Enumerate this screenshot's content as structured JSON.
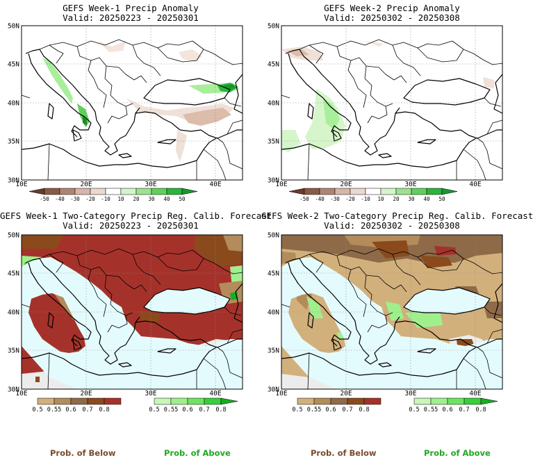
{
  "panels": [
    {
      "title": "GEFS Week-1 Precip Anomaly",
      "valid": "Valid: 20250223 - 20250301"
    },
    {
      "title": "GEFS Week-2 Precip Anomaly",
      "valid": "Valid: 20250302 - 20250308"
    },
    {
      "title": "GEFS Week-1 Two-Category Precip Reg. Calib. Forecast",
      "valid": "Valid: 20250223 - 20250301"
    },
    {
      "title": "GEFS Week-2 Two-Category Precip Reg. Calib. Forecast",
      "valid": "Valid: 20250302 - 20250308"
    }
  ],
  "lat_labels": [
    "50N",
    "45N",
    "40N",
    "35N",
    "30N"
  ],
  "lon_labels": [
    "10E",
    "20E",
    "30E",
    "40E"
  ],
  "anomaly_colorbar": {
    "labels": [
      "-50",
      "-40",
      "-30",
      "-20",
      "-10",
      "10",
      "20",
      "30",
      "40",
      "50"
    ],
    "colors": [
      "#6b3b2a",
      "#8c5a44",
      "#b08473",
      "#d7b6a8",
      "#ecd8cf",
      "#ffffff",
      "#d3f5c9",
      "#9be38f",
      "#5fd15a",
      "#2bb53c",
      "#149a2b"
    ]
  },
  "below_colorbar": {
    "labels": [
      "0.5",
      "0.55",
      "0.6",
      "0.7",
      "0.8"
    ],
    "colors": [
      "#d2b07c",
      "#b48c5c",
      "#8f6a48",
      "#8b4a1c",
      "#a5322a"
    ]
  },
  "above_colorbar": {
    "labels": [
      "0.5",
      "0.55",
      "0.6",
      "0.7",
      "0.8"
    ],
    "colors": [
      "#c8f7b8",
      "#9ff08c",
      "#6ee362",
      "#38cf3a",
      "#14ae20"
    ]
  },
  "prob_below_label": "Prob. of Below",
  "prob_above_label": "Prob. of Above",
  "colors": {
    "prob_below_text": "#7a4a2b",
    "prob_above_text": "#1fa81f",
    "sea": "#e4fbfd",
    "no_data": "#ececec"
  }
}
